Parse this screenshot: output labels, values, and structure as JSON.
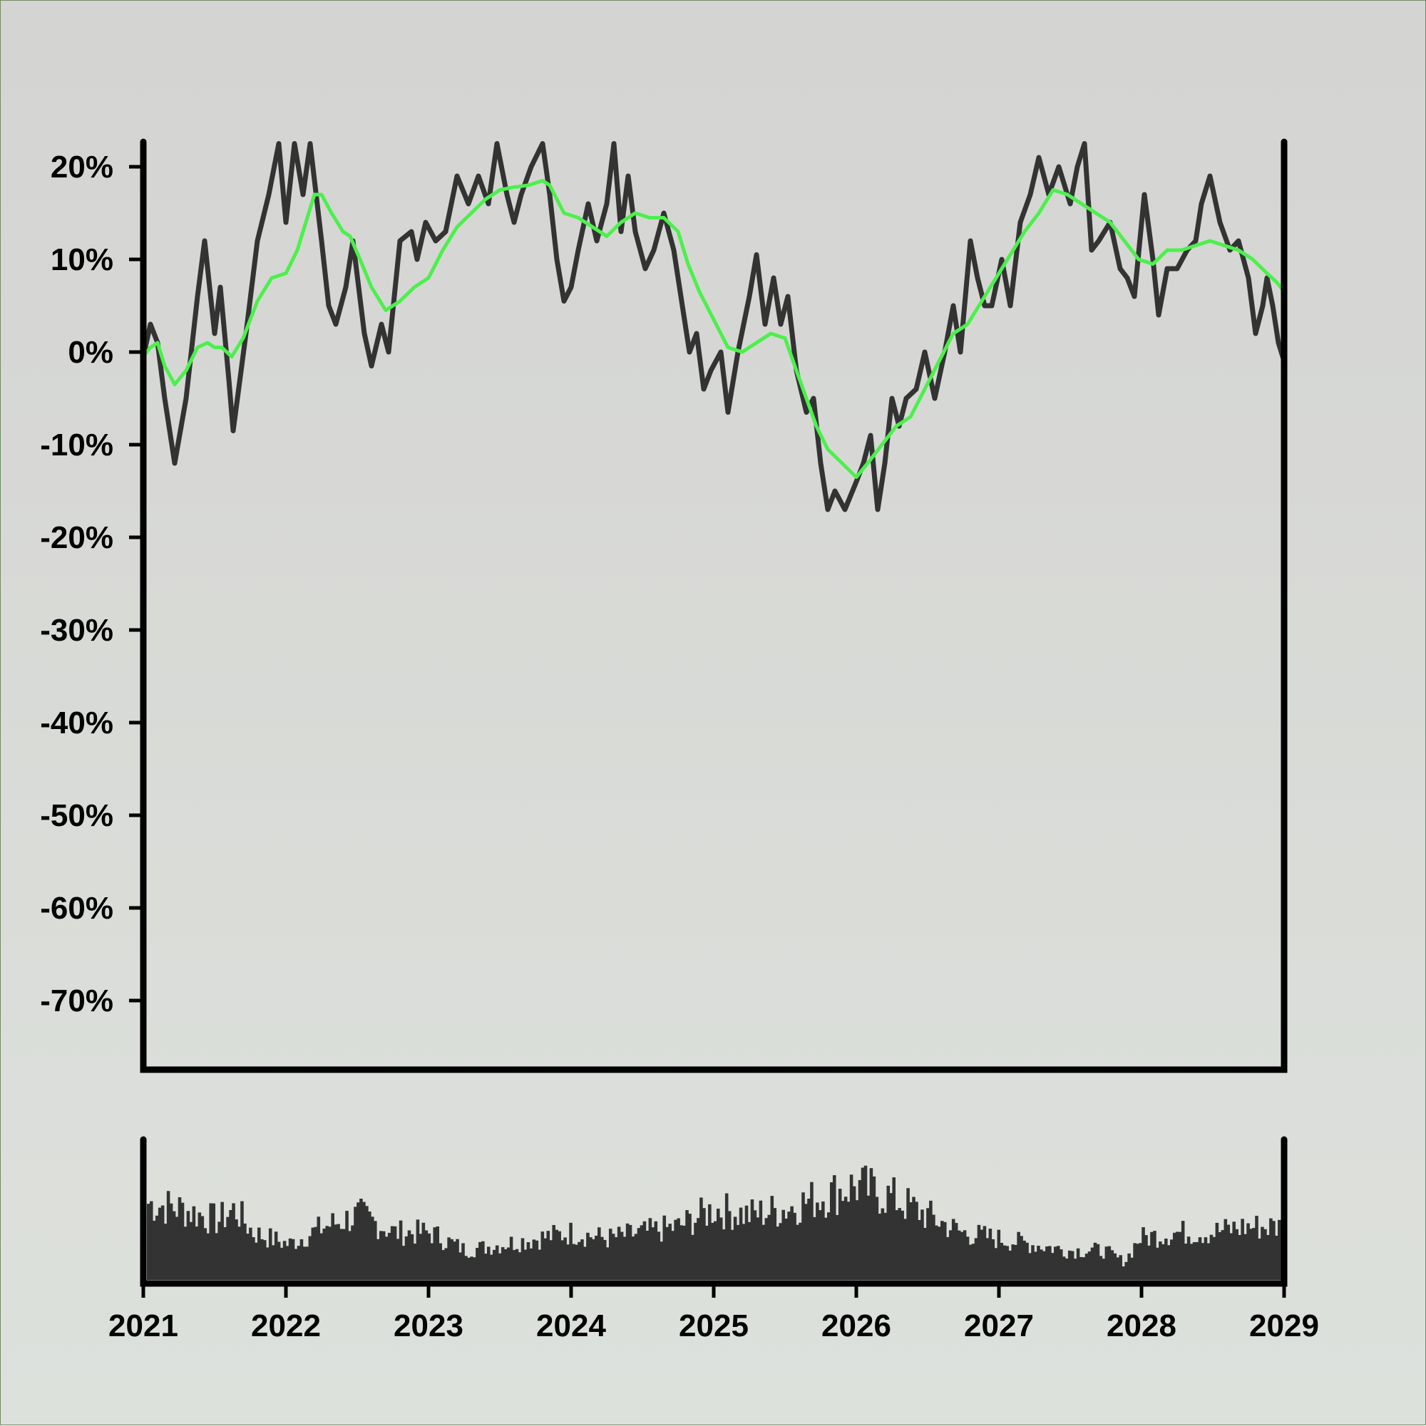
{
  "chart_data": [
    {
      "type": "line",
      "title": "",
      "xlabel": "",
      "ylabel": "",
      "xlim": [
        2021.0,
        2029.0
      ],
      "ylim": [
        -75,
        23
      ],
      "y_ticks": [
        20,
        10,
        0,
        -10,
        -20,
        -30,
        -40,
        -50,
        -60,
        -70
      ],
      "y_tick_labels": [
        "20%",
        "10%",
        "0%",
        "-10%",
        "-20%",
        "-30%",
        "-40%",
        "-50%",
        "-60%",
        "-70%"
      ],
      "grid": false,
      "legend": "none",
      "series": [
        {
          "color": "#333333",
          "points": [
            [
              2021.0,
              -0.5
            ],
            [
              2021.05,
              3
            ],
            [
              2021.1,
              1
            ],
            [
              2021.15,
              -5
            ],
            [
              2021.22,
              -12
            ],
            [
              2021.3,
              -5
            ],
            [
              2021.38,
              6
            ],
            [
              2021.43,
              12
            ],
            [
              2021.5,
              2
            ],
            [
              2021.54,
              7
            ],
            [
              2021.6,
              -3
            ],
            [
              2021.63,
              -8.5
            ],
            [
              2021.72,
              2
            ],
            [
              2021.8,
              12
            ],
            [
              2021.88,
              17
            ],
            [
              2021.95,
              22.5
            ],
            [
              2022.0,
              14
            ],
            [
              2022.06,
              22.5
            ],
            [
              2022.12,
              17
            ],
            [
              2022.17,
              22.5
            ],
            [
              2022.25,
              12
            ],
            [
              2022.3,
              5
            ],
            [
              2022.35,
              3
            ],
            [
              2022.42,
              7
            ],
            [
              2022.47,
              12
            ],
            [
              2022.55,
              2
            ],
            [
              2022.6,
              -1.5
            ],
            [
              2022.67,
              3
            ],
            [
              2022.72,
              0
            ],
            [
              2022.8,
              12
            ],
            [
              2022.88,
              13
            ],
            [
              2022.92,
              10
            ],
            [
              2022.98,
              14
            ],
            [
              2023.05,
              12
            ],
            [
              2023.12,
              13
            ],
            [
              2023.2,
              19
            ],
            [
              2023.28,
              16
            ],
            [
              2023.35,
              19
            ],
            [
              2023.42,
              16
            ],
            [
              2023.48,
              22.5
            ],
            [
              2023.55,
              17
            ],
            [
              2023.6,
              14
            ],
            [
              2023.65,
              17
            ],
            [
              2023.72,
              20
            ],
            [
              2023.8,
              22.5
            ],
            [
              2023.85,
              17
            ],
            [
              2023.9,
              10
            ],
            [
              2023.95,
              5.5
            ],
            [
              2024.0,
              7
            ],
            [
              2024.05,
              11
            ],
            [
              2024.12,
              16
            ],
            [
              2024.18,
              12
            ],
            [
              2024.25,
              16
            ],
            [
              2024.3,
              22.5
            ],
            [
              2024.35,
              13
            ],
            [
              2024.4,
              19
            ],
            [
              2024.45,
              13
            ],
            [
              2024.52,
              9
            ],
            [
              2024.58,
              11
            ],
            [
              2024.65,
              15
            ],
            [
              2024.72,
              11
            ],
            [
              2024.78,
              5
            ],
            [
              2024.83,
              0
            ],
            [
              2024.88,
              2
            ],
            [
              2024.93,
              -4
            ],
            [
              2024.98,
              -2
            ],
            [
              2025.05,
              0
            ],
            [
              2025.1,
              -6.5
            ],
            [
              2025.17,
              0
            ],
            [
              2025.25,
              6
            ],
            [
              2025.3,
              10.5
            ],
            [
              2025.36,
              3
            ],
            [
              2025.42,
              8
            ],
            [
              2025.47,
              3
            ],
            [
              2025.52,
              6
            ],
            [
              2025.58,
              -2
            ],
            [
              2025.65,
              -6.5
            ],
            [
              2025.7,
              -5
            ],
            [
              2025.75,
              -12
            ],
            [
              2025.8,
              -17
            ],
            [
              2025.85,
              -15
            ],
            [
              2025.92,
              -17
            ],
            [
              2026.0,
              -14
            ],
            [
              2026.05,
              -12
            ],
            [
              2026.1,
              -9
            ],
            [
              2026.15,
              -17
            ],
            [
              2026.2,
              -12
            ],
            [
              2026.25,
              -5
            ],
            [
              2026.3,
              -8
            ],
            [
              2026.35,
              -5
            ],
            [
              2026.42,
              -4
            ],
            [
              2026.48,
              0
            ],
            [
              2026.55,
              -5
            ],
            [
              2026.62,
              0
            ],
            [
              2026.68,
              5
            ],
            [
              2026.73,
              0
            ],
            [
              2026.8,
              12
            ],
            [
              2026.85,
              8
            ],
            [
              2026.9,
              5
            ],
            [
              2026.95,
              5
            ],
            [
              2027.02,
              10
            ],
            [
              2027.08,
              5
            ],
            [
              2027.15,
              14
            ],
            [
              2027.22,
              17
            ],
            [
              2027.28,
              21
            ],
            [
              2027.35,
              17
            ],
            [
              2027.42,
              20
            ],
            [
              2027.5,
              16
            ],
            [
              2027.55,
              20
            ],
            [
              2027.6,
              22.5
            ],
            [
              2027.65,
              11
            ],
            [
              2027.7,
              12
            ],
            [
              2027.78,
              14
            ],
            [
              2027.85,
              9
            ],
            [
              2027.9,
              8
            ],
            [
              2027.95,
              6
            ],
            [
              2028.02,
              17
            ],
            [
              2028.08,
              10
            ],
            [
              2028.12,
              4
            ],
            [
              2028.18,
              9
            ],
            [
              2028.25,
              9
            ],
            [
              2028.32,
              11
            ],
            [
              2028.38,
              12
            ],
            [
              2028.42,
              16
            ],
            [
              2028.48,
              19
            ],
            [
              2028.55,
              14
            ],
            [
              2028.62,
              11
            ],
            [
              2028.68,
              12
            ],
            [
              2028.75,
              8
            ],
            [
              2028.8,
              2
            ],
            [
              2028.85,
              5
            ],
            [
              2028.88,
              8
            ],
            [
              2028.92,
              5
            ],
            [
              2028.96,
              1
            ],
            [
              2029.0,
              -1
            ]
          ]
        },
        {
          "color": "#4cf04c",
          "points": [
            [
              2021.0,
              -0.5
            ],
            [
              2021.05,
              0.5
            ],
            [
              2021.1,
              1
            ],
            [
              2021.15,
              -1.5
            ],
            [
              2021.22,
              -3.5
            ],
            [
              2021.3,
              -2
            ],
            [
              2021.38,
              0.5
            ],
            [
              2021.45,
              1
            ],
            [
              2021.5,
              0.5
            ],
            [
              2021.55,
              0.5
            ],
            [
              2021.62,
              -0.5
            ],
            [
              2021.7,
              1.5
            ],
            [
              2021.8,
              5.5
            ],
            [
              2021.9,
              8
            ],
            [
              2022.0,
              8.5
            ],
            [
              2022.08,
              11
            ],
            [
              2022.15,
              14.5
            ],
            [
              2022.2,
              17
            ],
            [
              2022.25,
              17
            ],
            [
              2022.32,
              15
            ],
            [
              2022.4,
              13
            ],
            [
              2022.45,
              12.5
            ],
            [
              2022.52,
              10
            ],
            [
              2022.6,
              7
            ],
            [
              2022.7,
              4.5
            ],
            [
              2022.8,
              5.5
            ],
            [
              2022.9,
              7
            ],
            [
              2023.0,
              8
            ],
            [
              2023.1,
              11
            ],
            [
              2023.2,
              13.5
            ],
            [
              2023.3,
              15
            ],
            [
              2023.4,
              16.5
            ],
            [
              2023.5,
              17.5
            ],
            [
              2023.6,
              17.8
            ],
            [
              2023.7,
              18
            ],
            [
              2023.8,
              18.5
            ],
            [
              2023.85,
              18
            ],
            [
              2023.9,
              16.5
            ],
            [
              2023.95,
              15
            ],
            [
              2024.05,
              14.5
            ],
            [
              2024.15,
              13.5
            ],
            [
              2024.25,
              12.5
            ],
            [
              2024.35,
              14
            ],
            [
              2024.45,
              15
            ],
            [
              2024.55,
              14.5
            ],
            [
              2024.65,
              14.5
            ],
            [
              2024.75,
              13
            ],
            [
              2024.82,
              9.5
            ],
            [
              2024.9,
              6.5
            ],
            [
              2025.0,
              3.5
            ],
            [
              2025.1,
              0.5
            ],
            [
              2025.2,
              0
            ],
            [
              2025.3,
              1
            ],
            [
              2025.4,
              2
            ],
            [
              2025.5,
              1.5
            ],
            [
              2025.58,
              -2
            ],
            [
              2025.65,
              -5
            ],
            [
              2025.72,
              -8
            ],
            [
              2025.8,
              -10.5
            ],
            [
              2025.9,
              -12
            ],
            [
              2026.0,
              -13.5
            ],
            [
              2026.08,
              -12
            ],
            [
              2026.18,
              -10
            ],
            [
              2026.28,
              -8
            ],
            [
              2026.38,
              -7
            ],
            [
              2026.48,
              -4
            ],
            [
              2026.58,
              -1
            ],
            [
              2026.68,
              2
            ],
            [
              2026.78,
              3
            ],
            [
              2026.88,
              5.5
            ],
            [
              2026.98,
              8
            ],
            [
              2027.08,
              10.5
            ],
            [
              2027.18,
              13
            ],
            [
              2027.28,
              15
            ],
            [
              2027.38,
              17.5
            ],
            [
              2027.48,
              17
            ],
            [
              2027.58,
              16
            ],
            [
              2027.68,
              15
            ],
            [
              2027.78,
              14
            ],
            [
              2027.88,
              12
            ],
            [
              2027.98,
              10
            ],
            [
              2028.08,
              9.5
            ],
            [
              2028.18,
              11
            ],
            [
              2028.28,
              11
            ],
            [
              2028.38,
              11.5
            ],
            [
              2028.48,
              12
            ],
            [
              2028.58,
              11.5
            ],
            [
              2028.68,
              11
            ],
            [
              2028.78,
              10
            ],
            [
              2028.88,
              8.5
            ],
            [
              2028.95,
              7.5
            ],
            [
              2029.0,
              6.5
            ]
          ]
        }
      ]
    },
    {
      "type": "bar",
      "title": "",
      "xlabel": "",
      "ylabel": "",
      "xlim": [
        2021.0,
        2029.0
      ],
      "ylim": [
        0,
        100
      ],
      "x_ticks": [
        2021,
        2022,
        2023,
        2024,
        2025,
        2026,
        2027,
        2028,
        2029
      ],
      "x_tick_labels": [
        "2021",
        "2022",
        "2023",
        "2024",
        "2025",
        "2026",
        "2027",
        "2028",
        "2029"
      ],
      "color": "#333333",
      "volume_profile": [
        [
          2021.0,
          65
        ],
        [
          2021.25,
          60
        ],
        [
          2021.5,
          50
        ],
        [
          2021.62,
          60
        ],
        [
          2021.75,
          40
        ],
        [
          2022.0,
          30
        ],
        [
          2022.25,
          45
        ],
        [
          2022.5,
          55
        ],
        [
          2022.75,
          40
        ],
        [
          2023.0,
          40
        ],
        [
          2023.25,
          25
        ],
        [
          2023.5,
          30
        ],
        [
          2023.75,
          35
        ],
        [
          2024.0,
          40
        ],
        [
          2024.25,
          35
        ],
        [
          2024.5,
          40
        ],
        [
          2024.75,
          45
        ],
        [
          2025.0,
          60
        ],
        [
          2025.25,
          55
        ],
        [
          2025.5,
          60
        ],
        [
          2025.75,
          70
        ],
        [
          2026.0,
          80
        ],
        [
          2026.25,
          70
        ],
        [
          2026.5,
          55
        ],
        [
          2026.75,
          40
        ],
        [
          2027.0,
          35
        ],
        [
          2027.25,
          30
        ],
        [
          2027.5,
          25
        ],
        [
          2027.75,
          25
        ],
        [
          2027.9,
          15
        ],
        [
          2028.0,
          35
        ],
        [
          2028.25,
          40
        ],
        [
          2028.5,
          40
        ],
        [
          2028.75,
          45
        ],
        [
          2029.0,
          45
        ]
      ]
    }
  ]
}
